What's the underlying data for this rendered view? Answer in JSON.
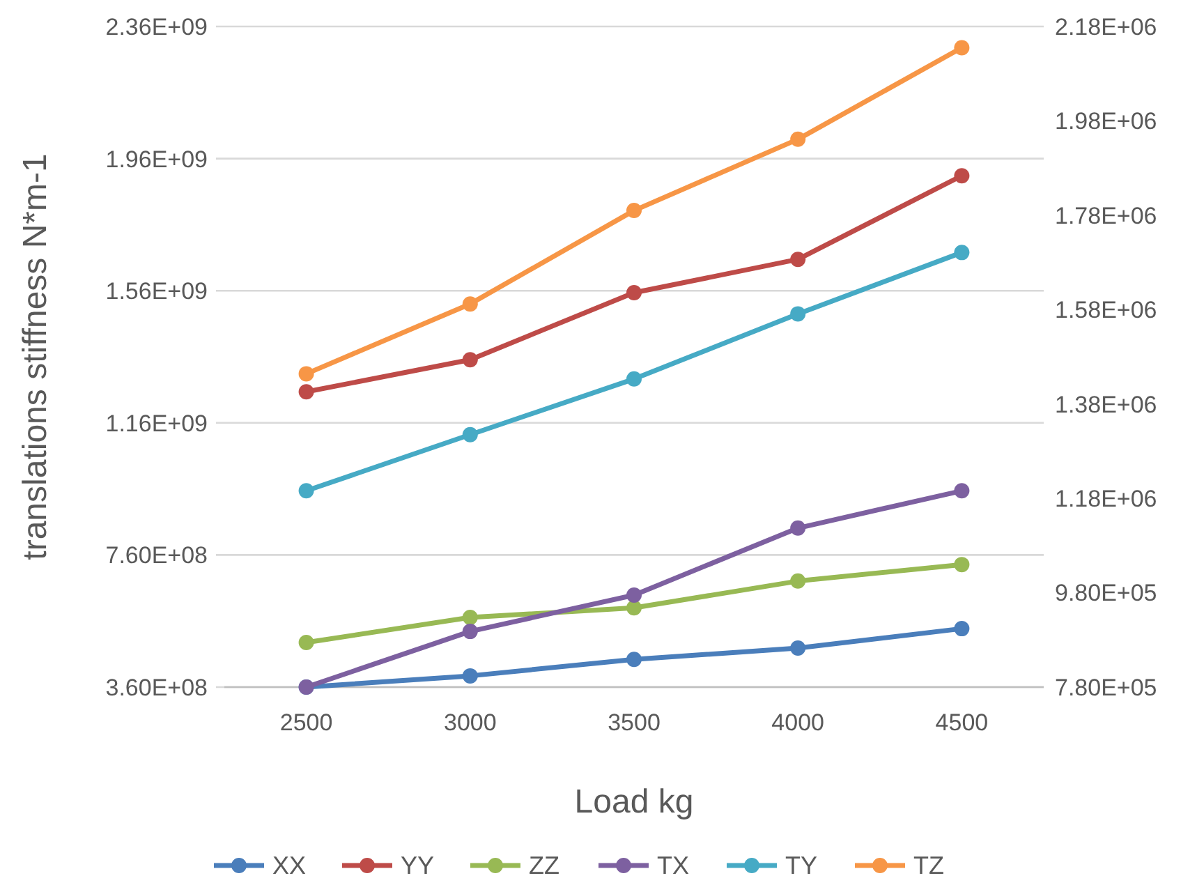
{
  "chart_data": {
    "type": "line",
    "ylabel": "translations stiffness  N*m-1",
    "xlabel": "Load kg",
    "categories": [
      "2500",
      "3000",
      "3500",
      "4000",
      "4500"
    ],
    "ylim": [
      360000000,
      2360000000
    ],
    "yticks": [
      {
        "value": 360000000,
        "label": "3.60E+08"
      },
      {
        "value": 760000000,
        "label": "7.60E+08"
      },
      {
        "value": 1160000000,
        "label": "1.16E+09"
      },
      {
        "value": 1560000000,
        "label": "1.56E+09"
      },
      {
        "value": 1960000000,
        "label": "1.96E+09"
      },
      {
        "value": 2360000000,
        "label": "2.36E+09"
      }
    ],
    "y2lim": [
      780000,
      2180000
    ],
    "y2ticks": [
      {
        "value": 780000,
        "label": "7.80E+05"
      },
      {
        "value": 980000,
        "label": "9.80E+05"
      },
      {
        "value": 1180000,
        "label": "1.18E+06"
      },
      {
        "value": 1380000,
        "label": "1.38E+06"
      },
      {
        "value": 1580000,
        "label": "1.58E+06"
      },
      {
        "value": 1780000,
        "label": "1.78E+06"
      },
      {
        "value": 1980000,
        "label": "1.98E+06"
      },
      {
        "value": 2180000,
        "label": "2.18E+06"
      }
    ],
    "grid": "y",
    "legend": "bottom",
    "marker": "circle",
    "line_style": "solid",
    "series": [
      {
        "name": "XX",
        "color": "#4a7ebb",
        "values": [
          360000000,
          394000000,
          444000000,
          478000000,
          537000000
        ]
      },
      {
        "name": "YY",
        "color": "#be4b48",
        "values": [
          1254000000,
          1351000000,
          1554000000,
          1655000000,
          1908000000
        ]
      },
      {
        "name": "ZZ",
        "color": "#98b954",
        "values": [
          495000000,
          571000000,
          600000000,
          681000000,
          731000000
        ]
      },
      {
        "name": "TX",
        "color": "#7d60a0",
        "axis": "y2",
        "values": [
          780000,
          898000,
          975000,
          1117000,
          1196000
        ]
      },
      {
        "name": "TY",
        "color": "#46aac5",
        "axis": "y2",
        "values": [
          1196000,
          1315000,
          1433000,
          1571000,
          1701000
        ]
      },
      {
        "name": "TZ",
        "color": "#f79646",
        "axis": "y2",
        "values": [
          1444000,
          1592000,
          1790000,
          1941000,
          2135000
        ]
      }
    ]
  }
}
